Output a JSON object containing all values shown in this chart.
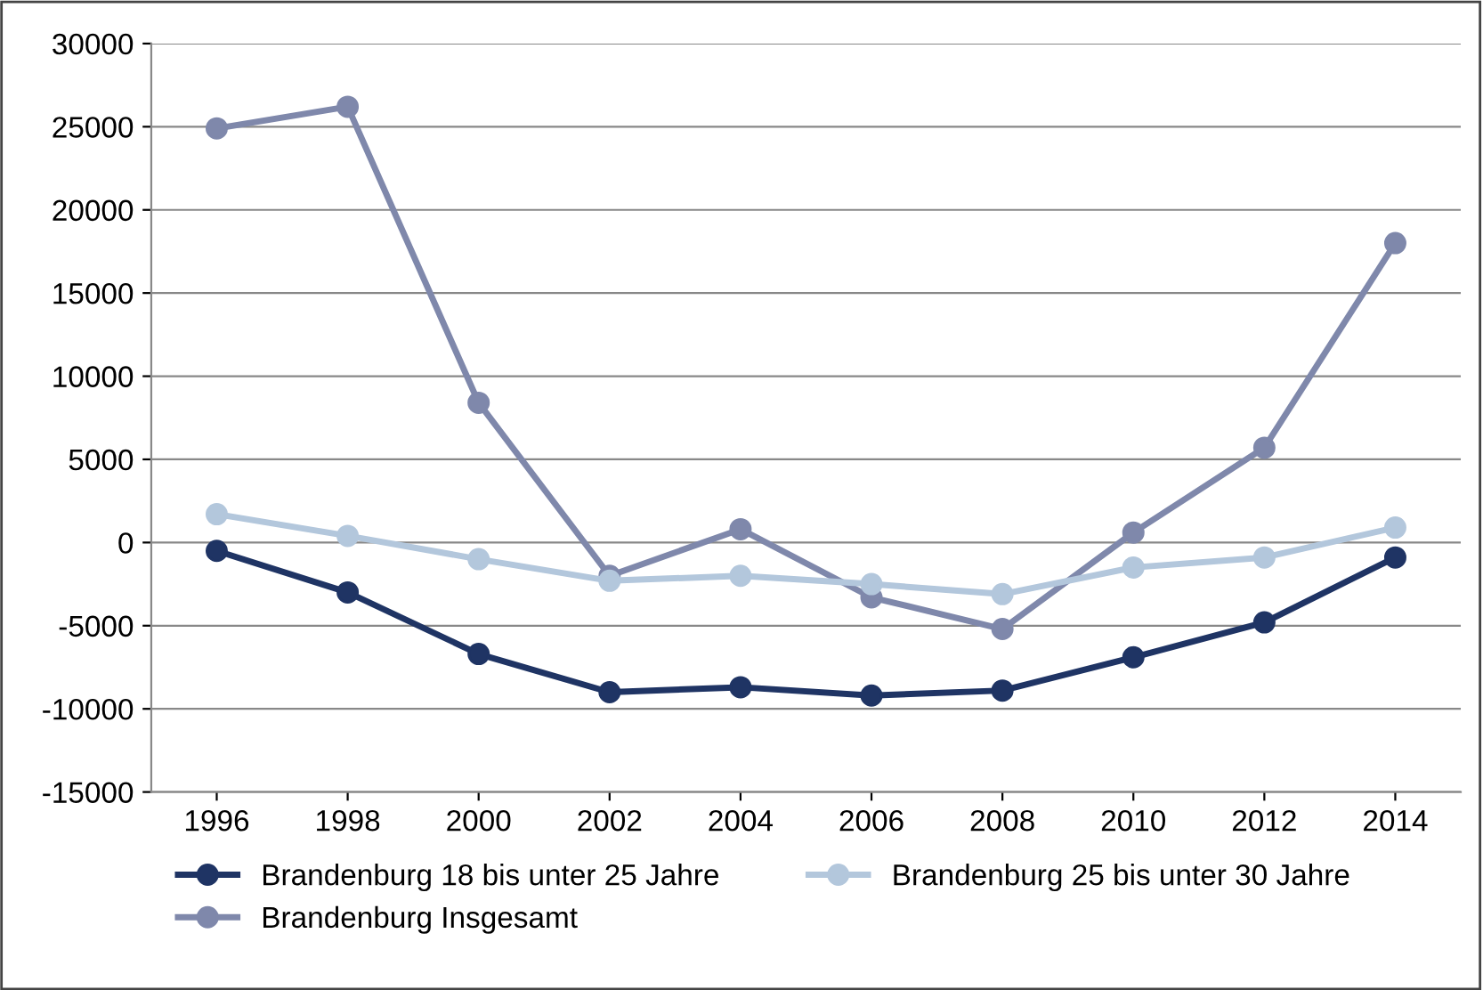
{
  "chart_data": {
    "type": "line",
    "categories": [
      "1996",
      "1998",
      "2000",
      "2002",
      "2004",
      "2006",
      "2008",
      "2010",
      "2012",
      "2014"
    ],
    "series": [
      {
        "name": "Brandenburg 18 bis unter 25 Jahre",
        "color": "#1f3464",
        "values": [
          -500,
          -3000,
          -6700,
          -9000,
          -8700,
          -9200,
          -8900,
          -6900,
          -4800,
          -900
        ]
      },
      {
        "name": "Brandenburg 25 bis unter 30 Jahre",
        "color": "#b3c7dc",
        "values": [
          1700,
          400,
          -1000,
          -2300,
          -2000,
          -2500,
          -3100,
          -1500,
          -900,
          900
        ]
      },
      {
        "name": "Brandenburg Insgesamt",
        "color": "#7f88ab",
        "values": [
          24900,
          26200,
          8400,
          -2000,
          800,
          -3300,
          -5200,
          600,
          5700,
          18000
        ]
      }
    ],
    "ylim": [
      -15000,
      30000
    ],
    "yticks": [
      -15000,
      -10000,
      -5000,
      0,
      5000,
      10000,
      15000,
      20000,
      25000,
      30000
    ],
    "grid": "y",
    "legend": "bottom",
    "marker": "circle",
    "line_style": "solid"
  }
}
